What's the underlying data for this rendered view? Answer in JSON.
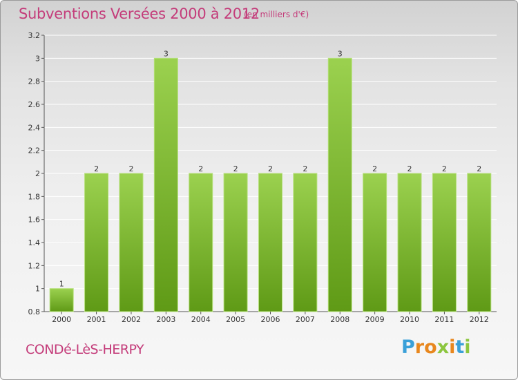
{
  "header": {
    "title": "Subventions Versées 2000 à 2012",
    "unit": "(en milliers d'€)"
  },
  "footer": {
    "commune": "CONDé-LèS-HERPY",
    "logo": "Proxiti"
  },
  "colors": {
    "title": "#c43c7a",
    "bar_light": "#9bd14f",
    "bar_dark": "#5f9a16",
    "axis": "#555555",
    "grid": "#ffffff"
  },
  "chart_data": {
    "type": "bar",
    "title": "Subventions Versées 2000 à 2012",
    "xlabel": "",
    "ylabel": "",
    "categories": [
      "2000",
      "2001",
      "2002",
      "2003",
      "2004",
      "2005",
      "2006",
      "2007",
      "2008",
      "2009",
      "2010",
      "2011",
      "2012"
    ],
    "values": [
      1,
      2,
      2,
      3,
      2,
      2,
      2,
      2,
      3,
      2,
      2,
      2,
      2
    ],
    "data_labels": [
      "1",
      "2",
      "2",
      "3",
      "2",
      "2",
      "2",
      "2",
      "3",
      "2",
      "2",
      "2",
      "2"
    ],
    "ylim": [
      0.8,
      3.2
    ],
    "yticks": [
      0.8,
      1,
      1.2,
      1.4,
      1.6,
      1.8,
      2,
      2.2,
      2.4,
      2.6,
      2.8,
      3,
      3.2
    ],
    "ytick_labels": [
      "0.8",
      "1",
      "1.2",
      "1.4",
      "1.6",
      "1.8",
      "2",
      "2.2",
      "2.4",
      "2.6",
      "2.8",
      "3",
      "3.2"
    ],
    "grid": true,
    "legend": "none"
  }
}
